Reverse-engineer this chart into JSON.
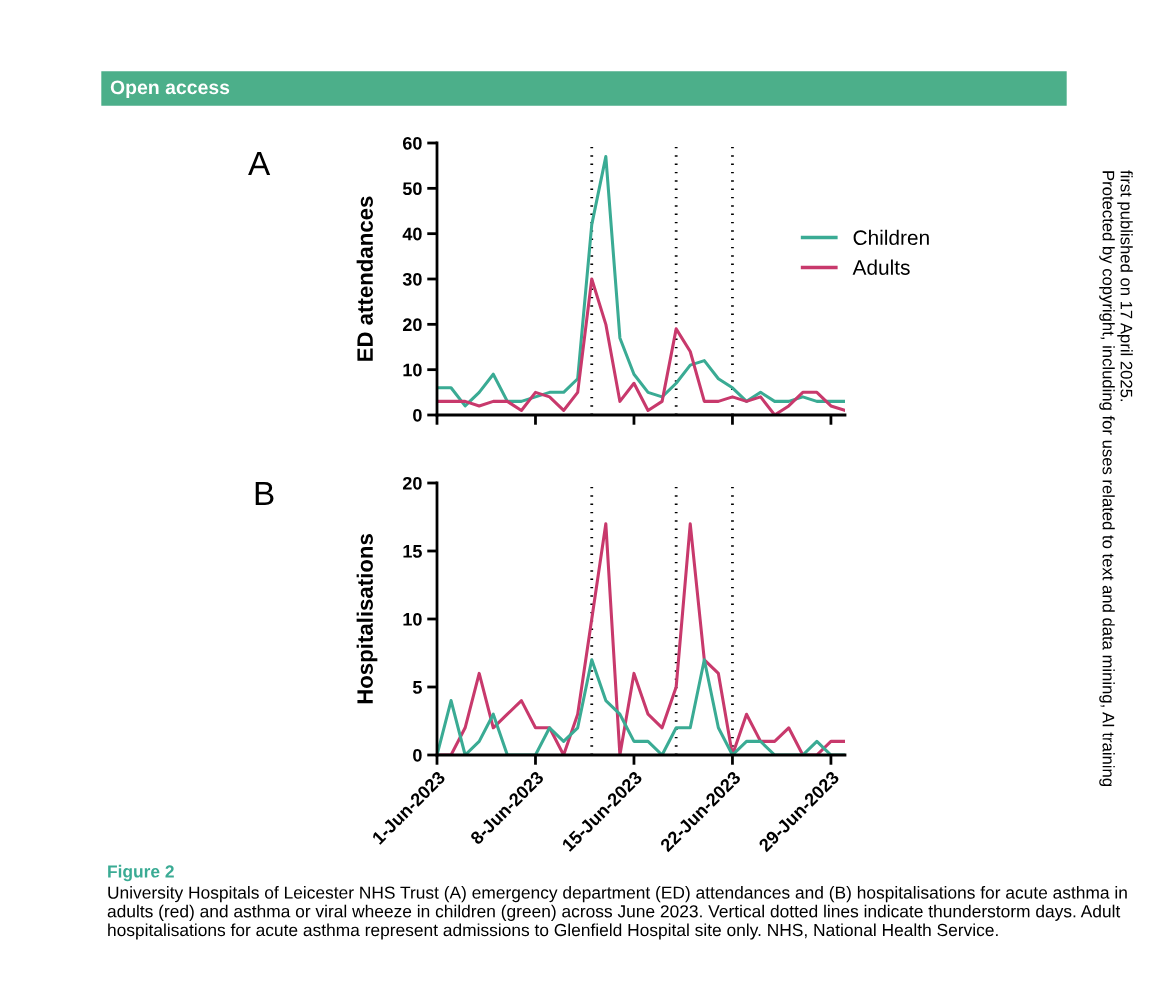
{
  "chart_data": [
    {
      "type": "line",
      "ylabel": "ED attendances",
      "annotations": [
        "A",
        "Open access",
        "first published on 17 April 2025.",
        "Protected by copyright, including for uses related to text and data mining, AI training"
      ],
      "x": [
        "2023-06-01",
        "2023-06-02",
        "2023-06-03",
        "2023-06-04",
        "2023-06-05",
        "2023-06-06",
        "2023-06-07",
        "2023-06-08",
        "2023-06-09",
        "2023-06-10",
        "2023-06-11",
        "2023-06-12",
        "2023-06-13",
        "2023-06-14",
        "2023-06-15",
        "2023-06-16",
        "2023-06-17",
        "2023-06-18",
        "2023-06-19",
        "2023-06-20",
        "2023-06-21",
        "2023-06-22",
        "2023-06-23",
        "2023-06-24",
        "2023-06-25",
        "2023-06-26",
        "2023-06-27",
        "2023-06-28",
        "2023-06-29",
        "2023-06-30"
      ],
      "series": [
        {
          "name": "Children",
          "color": "#3aab94",
          "values": [
            6,
            6,
            2,
            5,
            9,
            3,
            3,
            4,
            5,
            5,
            8,
            42,
            57,
            17,
            9,
            5,
            4,
            7,
            11,
            12,
            8,
            6,
            3,
            5,
            3,
            3,
            4,
            3,
            3,
            3
          ]
        },
        {
          "name": "Adults",
          "color": "#c8396c",
          "values": [
            3,
            3,
            3,
            2,
            3,
            3,
            1,
            5,
            4,
            1,
            5,
            30,
            20,
            3,
            7,
            1,
            3,
            19,
            14,
            3,
            3,
            4,
            3,
            4,
            0,
            2,
            5,
            5,
            2,
            1
          ]
        }
      ],
      "xlim": [
        "2023-06-01",
        "2023-06-30"
      ],
      "xticks": [
        {
          "value": "2023-06-01",
          "label": null
        },
        {
          "value": "2023-06-08",
          "label": null
        },
        {
          "value": "2023-06-15",
          "label": null
        },
        {
          "value": "2023-06-22",
          "label": null
        },
        {
          "value": "2023-06-29",
          "label": null
        }
      ],
      "ylim": [
        0,
        60
      ],
      "yticks": [
        0,
        10,
        20,
        30,
        40,
        50,
        60
      ],
      "tick_labels": "y",
      "grid": false,
      "legend": "right",
      "line_style": "solid",
      "ref_lines": [
        {
          "axis": "x",
          "value": "2023-06-12",
          "color": "#000000",
          "line_style": "dotted"
        },
        {
          "axis": "x",
          "value": "2023-06-18",
          "color": "#000000",
          "line_style": "dotted"
        },
        {
          "axis": "x",
          "value": "2023-06-22",
          "color": "#000000",
          "line_style": "dotted"
        }
      ]
    },
    {
      "type": "line",
      "ylabel": "Hospitalisations",
      "annotations": [
        "B",
        "Figure 2",
        "University Hospitals of Leicester NHS Trust (A) emergency department (ED) attendances and (B) hospitalisations for acute asthma in adults (red) and asthma or viral wheeze in children (green) across June 2023. Vertical dotted lines indicate thunderstorm days. Adult hospitalisations for acute asthma represent admissions to Glenfield Hospital site only. NHS, National Health Service."
      ],
      "x": [
        "2023-06-01",
        "2023-06-02",
        "2023-06-03",
        "2023-06-04",
        "2023-06-05",
        "2023-06-06",
        "2023-06-07",
        "2023-06-08",
        "2023-06-09",
        "2023-06-10",
        "2023-06-11",
        "2023-06-12",
        "2023-06-13",
        "2023-06-14",
        "2023-06-15",
        "2023-06-16",
        "2023-06-17",
        "2023-06-18",
        "2023-06-19",
        "2023-06-20",
        "2023-06-21",
        "2023-06-22",
        "2023-06-23",
        "2023-06-24",
        "2023-06-25",
        "2023-06-26",
        "2023-06-27",
        "2023-06-28",
        "2023-06-29",
        "2023-06-30"
      ],
      "series": [
        {
          "color": "#c8396c",
          "values": [
            0,
            0,
            2,
            6,
            2,
            3,
            4,
            2,
            2,
            0,
            3,
            10,
            17,
            0,
            6,
            3,
            2,
            5,
            17,
            7,
            6,
            0,
            3,
            1,
            1,
            2,
            0,
            0,
            1,
            1
          ]
        },
        {
          "color": "#3aab94",
          "values": [
            0,
            4,
            0,
            1,
            3,
            0,
            0,
            0,
            2,
            1,
            2,
            7,
            4,
            3,
            1,
            1,
            0,
            2,
            2,
            7,
            2,
            0,
            1,
            1,
            0,
            0,
            0,
            1,
            0,
            0
          ]
        }
      ],
      "xlim": [
        "2023-06-01",
        "2023-06-30"
      ],
      "xticks": [
        {
          "value": "2023-06-01",
          "label": "1-Jun-2023"
        },
        {
          "value": "2023-06-08",
          "label": "8-Jun-2023"
        },
        {
          "value": "2023-06-15",
          "label": "15-Jun-2023"
        },
        {
          "value": "2023-06-22",
          "label": "22-Jun-2023"
        },
        {
          "value": "2023-06-29",
          "label": "29-Jun-2023"
        }
      ],
      "ylim": [
        0,
        20
      ],
      "yticks": [
        0,
        5,
        10,
        15,
        20
      ],
      "grid": false,
      "line_style": "solid",
      "ref_lines": [
        {
          "axis": "x",
          "value": "2023-06-12",
          "color": "#000000",
          "line_style": "dotted"
        },
        {
          "axis": "x",
          "value": "2023-06-18",
          "color": "#000000",
          "line_style": "dotted"
        },
        {
          "axis": "x",
          "value": "2023-06-22",
          "color": "#000000",
          "line_style": "dotted"
        }
      ]
    }
  ]
}
